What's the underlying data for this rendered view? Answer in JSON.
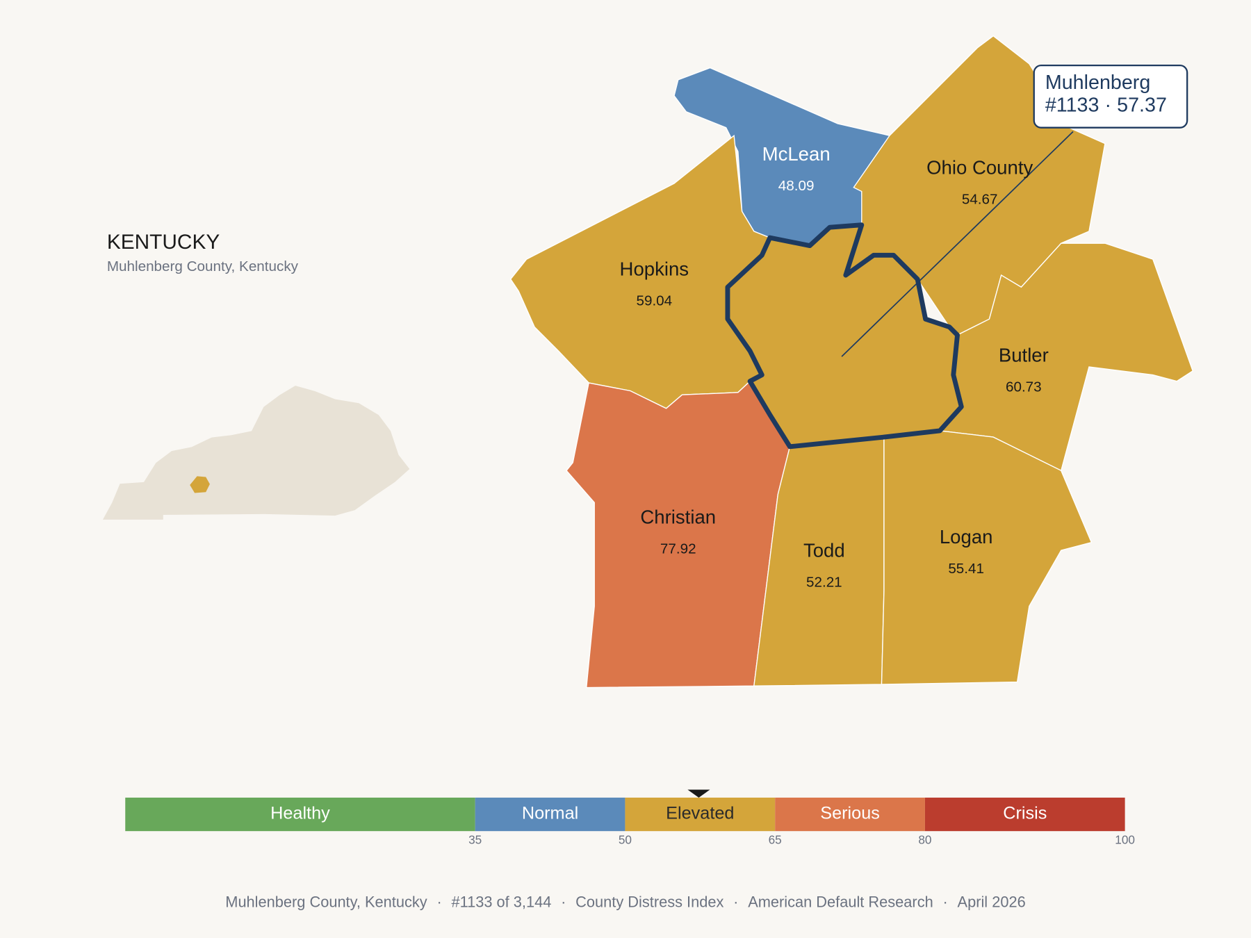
{
  "header": {
    "title": "KENTUCKY",
    "subtitle": "Muhlenberg County, Kentucky"
  },
  "selected": {
    "name": "Muhlenberg",
    "rank": "#1133",
    "separator": "·",
    "value": 57.37,
    "color": "#d4a53a"
  },
  "counties": [
    {
      "name": "McLean",
      "value": 48.09,
      "color": "#5b8aba"
    },
    {
      "name": "Ohio County",
      "value": 54.67,
      "color": "#d4a53a"
    },
    {
      "name": "Hopkins",
      "value": 59.04,
      "color": "#d4a53a"
    },
    {
      "name": "Butler",
      "value": 60.73,
      "color": "#d4a53a"
    },
    {
      "name": "Christian",
      "value": 77.92,
      "color": "#db764a"
    },
    {
      "name": "Todd",
      "value": 52.21,
      "color": "#d4a53a"
    },
    {
      "name": "Logan",
      "value": 55.41,
      "color": "#d4a53a"
    }
  ],
  "legend": {
    "bands": [
      {
        "label": "Healthy",
        "color": "#68a85a",
        "text_color": "#ffffff"
      },
      {
        "label": "Normal",
        "color": "#5b8aba",
        "text_color": "#ffffff"
      },
      {
        "label": "Elevated",
        "color": "#d4a53a",
        "text_color": "#2a2a2a"
      },
      {
        "label": "Serious",
        "color": "#db764a",
        "text_color": "#ffffff"
      },
      {
        "label": "Crisis",
        "color": "#bb3d2e",
        "text_color": "#ffffff"
      }
    ],
    "ticks": [
      35,
      50,
      65,
      80,
      100
    ]
  },
  "footer": {
    "items": [
      "Muhlenberg County, Kentucky",
      "#1133 of 3,144",
      "County Distress Index",
      "American Default Research",
      "April 2026"
    ],
    "separator": "·"
  }
}
